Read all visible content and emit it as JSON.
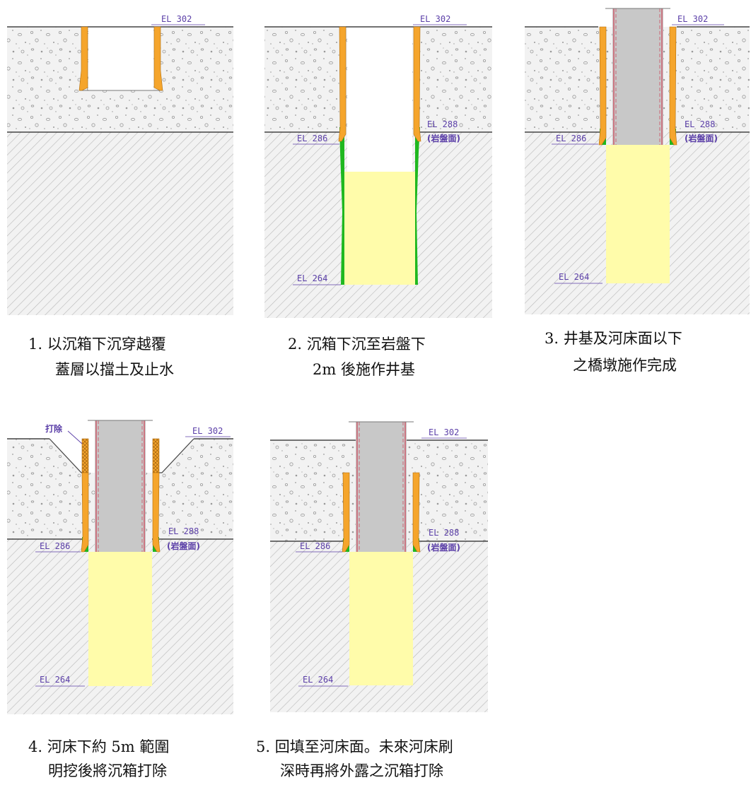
{
  "colors": {
    "sheet_pile": "#F5A52C",
    "grout": "#1FB81F",
    "shaft_fill": "#FFFCAA",
    "pier": "#C8C8C8",
    "pier_edge": "#D0243C",
    "soil_background": "#F2F2F2",
    "hatch": "#B8B8B8",
    "label": "#5B3FA8"
  },
  "icons": [
    "gravel-pattern",
    "rock-hatch-pattern"
  ],
  "panels": [
    {
      "labels": {
        "top": "EL 302"
      },
      "caption": [
        "1.  以沉箱下沉穿越覆",
        "蓋層以擋土及止水"
      ]
    },
    {
      "labels": {
        "top": "EL 302",
        "rock": "EL 288",
        "rock_note": "(岩盤面)",
        "left": "EL 286",
        "bottom": "EL 264"
      },
      "caption": [
        "2.  沉箱下沉至岩盤下",
        "2m 後施作井基"
      ]
    },
    {
      "labels": {
        "top": "EL 302",
        "rock": "EL 288",
        "rock_note": "(岩盤面)",
        "left": "EL 286",
        "bottom": "EL 264"
      },
      "caption": [
        "3.  井基及河床面以下",
        "之橋墩施作完成"
      ]
    },
    {
      "labels": {
        "top": "EL 302",
        "rock": "EL 288",
        "rock_note": "(岩盤面)",
        "left": "EL 286",
        "bottom": "EL 264",
        "remove": "打除"
      },
      "caption": [
        "4.  河床下約  5m  範圍",
        "明挖後將沉箱打除"
      ]
    },
    {
      "labels": {
        "top": "EL 302",
        "rock": "EL 288",
        "rock_note": "(岩盤面)",
        "left": "EL 286",
        "bottom": "EL 264"
      },
      "caption": [
        "5.  回填至河床面。未來河床刷",
        "深時再將外露之沉箱打除"
      ]
    }
  ]
}
